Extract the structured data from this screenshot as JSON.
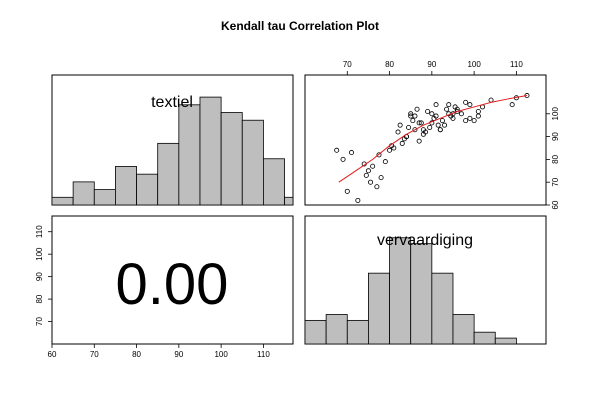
{
  "chart_data": {
    "type": "scatter-matrix",
    "title": "Kendall tau Correlation Plot",
    "variables": [
      "textiel",
      "vervaardiging"
    ],
    "correlation": "0.00",
    "axis_ticks": {
      "textiel": [
        60,
        70,
        80,
        90,
        100,
        110
      ],
      "vervaardiging_top": [
        70,
        80,
        90,
        100,
        110
      ],
      "vervaardiging_right": [
        60,
        70,
        80,
        90,
        100
      ],
      "left": [
        70,
        80,
        90,
        100,
        110
      ]
    },
    "xlim": [
      60,
      117
    ],
    "ylim": [
      60,
      117
    ],
    "histograms": {
      "textiel": {
        "breaks": [
          60,
          65,
          70,
          75,
          80,
          85,
          90,
          95,
          100,
          105,
          110,
          115,
          120
        ],
        "counts": [
          1,
          3,
          2,
          5,
          4,
          8,
          13,
          14,
          12,
          11,
          6,
          1
        ]
      },
      "vervaardiging": {
        "breaks": [
          60,
          65,
          70,
          75,
          80,
          85,
          90,
          95,
          100,
          105,
          110,
          115,
          120
        ],
        "counts": [
          4,
          5,
          4,
          12,
          18,
          17,
          12,
          5,
          2,
          1,
          0,
          0
        ]
      }
    },
    "scatter": {
      "xlabel": "",
      "ylabel": "",
      "x": [
        67.5,
        69,
        70,
        71,
        72.5,
        74,
        74.5,
        75,
        76,
        77,
        78,
        79,
        80,
        81,
        82,
        82.5,
        83,
        84,
        84.5,
        85,
        85.5,
        86,
        86.5,
        87,
        87.5,
        88,
        88.5,
        89,
        89.5,
        90,
        90.5,
        91,
        91.5,
        92,
        92.5,
        93,
        93.5,
        94,
        94.5,
        95,
        95.5,
        96,
        97,
        98,
        99,
        100,
        101,
        102,
        104,
        109,
        110,
        112.5,
        75.5,
        77.5,
        80.5,
        83.5,
        86,
        88,
        91,
        94,
        96,
        99,
        84,
        87,
        92,
        95,
        98,
        101,
        85,
        90
      ],
      "y": [
        84,
        80,
        66,
        83,
        62,
        78,
        73,
        75,
        77,
        68,
        72,
        79,
        84,
        85,
        92,
        95,
        87,
        90,
        94,
        100,
        97,
        99,
        102,
        88,
        96,
        93,
        92,
        101,
        94,
        96,
        98,
        99,
        95,
        93,
        97,
        95,
        102,
        104,
        99,
        98,
        103,
        101,
        100,
        105,
        104,
        97,
        99,
        103,
        106,
        104,
        107,
        108,
        70,
        82,
        86,
        89,
        93,
        91,
        104,
        100,
        102,
        98,
        90,
        96,
        93,
        100,
        97,
        101,
        99,
        100
      ],
      "smoother": {
        "x": [
          68,
          72,
          76,
          80,
          84,
          88,
          92,
          96,
          100,
          104,
          108,
          112.5
        ],
        "y": [
          70,
          75,
          80,
          86,
          91,
          95,
          98,
          101,
          103,
          105,
          106.5,
          108
        ]
      }
    }
  }
}
